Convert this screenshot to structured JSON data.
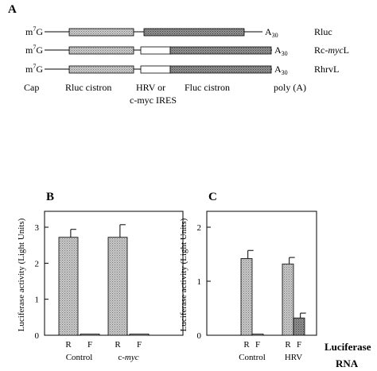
{
  "panel_a": {
    "label": "A",
    "constructs": [
      {
        "cap": "m7G",
        "name": "Rluc",
        "poly": "A30",
        "ires": false
      },
      {
        "cap": "m7G",
        "name": "Rc-mycL",
        "poly": "A30",
        "ires": true
      },
      {
        "cap": "m7G",
        "name": "RhrvL",
        "poly": "A30",
        "ires": true
      }
    ],
    "legend": {
      "cap": "Cap",
      "rluc": "Rluc cistron",
      "ires_line1": "HRV or",
      "ires_line2": "c-myc IRES",
      "fluc": "Fluc cistron",
      "poly": "poly (A)"
    }
  },
  "chart_data": [
    {
      "panel": "B",
      "type": "bar",
      "ylabel": "Luciferase activity (Light Units)",
      "ylim": [
        0,
        3
      ],
      "yticks": [
        0,
        1,
        2,
        3
      ],
      "groups": [
        "Control",
        "c-myc"
      ],
      "categories": [
        "R",
        "F",
        "R",
        "F"
      ],
      "values": [
        2.72,
        0.03,
        2.72,
        0.03
      ],
      "errors": [
        0.22,
        0,
        0.35,
        0
      ]
    },
    {
      "panel": "C",
      "type": "bar",
      "ylabel": "Luciferase activity (Light Units)",
      "ylim": [
        0,
        2
      ],
      "yticks": [
        0,
        1,
        2
      ],
      "groups": [
        "Control",
        "HRV"
      ],
      "categories": [
        "R",
        "F",
        "R",
        "F"
      ],
      "values": [
        1.42,
        0.02,
        1.32,
        0.32
      ],
      "errors": [
        0.15,
        0,
        0.12,
        0.09
      ]
    }
  ],
  "footer": {
    "line1": "Luciferase",
    "line2": "RNA"
  }
}
